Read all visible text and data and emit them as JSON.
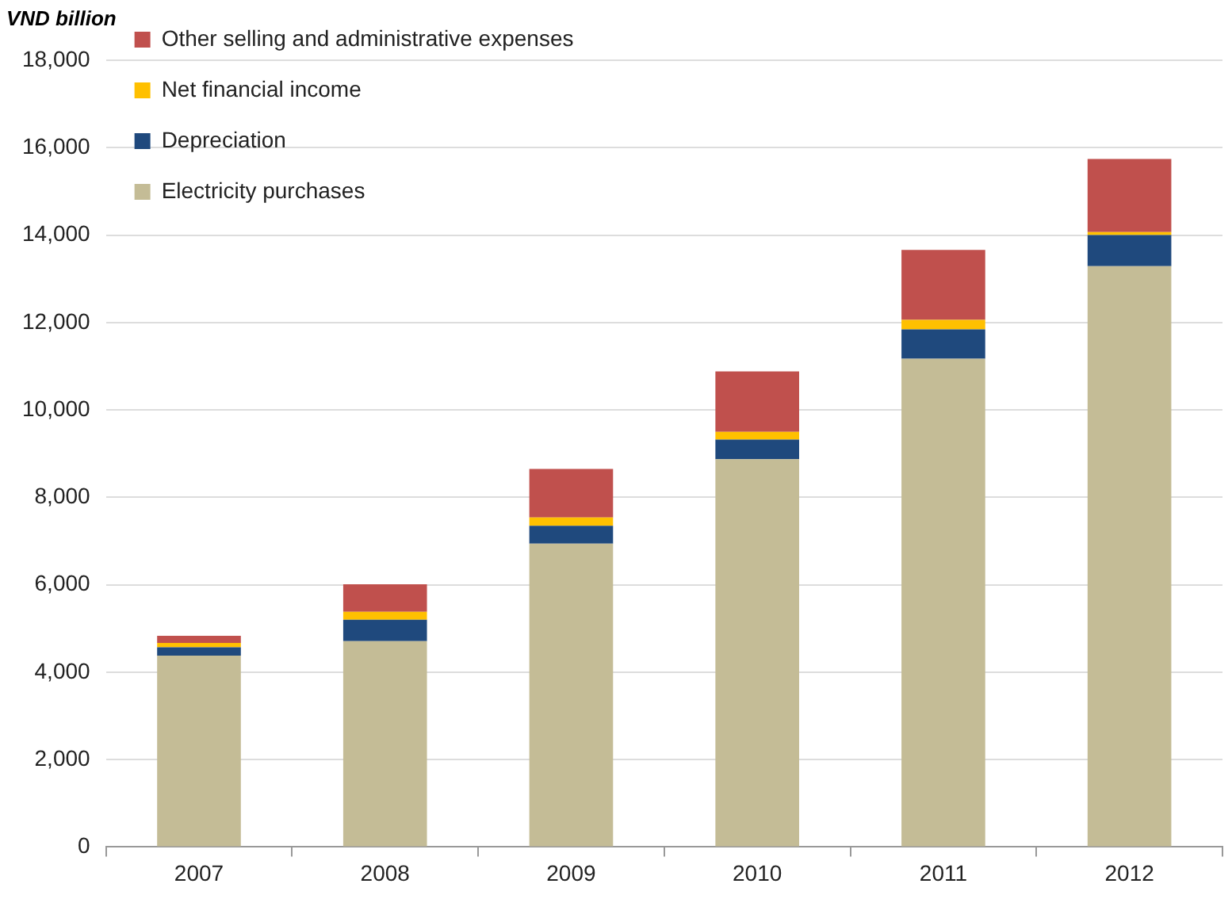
{
  "chart_data": {
    "type": "bar",
    "ylabel": "VND billion",
    "stacked": true,
    "categories": [
      "2007",
      "2008",
      "2009",
      "2010",
      "2011",
      "2012"
    ],
    "series": [
      {
        "name": "Electricity purchases",
        "color": "#c4bc96",
        "values": [
          4380,
          4710,
          6940,
          8870,
          11170,
          13290
        ]
      },
      {
        "name": "Depreciation",
        "color": "#1f497d",
        "values": [
          190,
          490,
          410,
          450,
          670,
          710
        ]
      },
      {
        "name": "Net financial income",
        "color": "#ffc000",
        "values": [
          100,
          180,
          190,
          180,
          220,
          70
        ]
      },
      {
        "name": "Other selling and administrative expenses",
        "color": "#c0504d",
        "values": [
          160,
          630,
          1110,
          1380,
          1600,
          1670
        ]
      }
    ],
    "ylim": [
      0,
      18000
    ],
    "yticks": [
      {
        "value": 0,
        "label": "0"
      },
      {
        "value": 2000,
        "label": "2,000"
      },
      {
        "value": 4000,
        "label": "4,000"
      },
      {
        "value": 6000,
        "label": "6,000"
      },
      {
        "value": 8000,
        "label": "8,000"
      },
      {
        "value": 10000,
        "label": "10,000"
      },
      {
        "value": 12000,
        "label": "12,000"
      },
      {
        "value": 14000,
        "label": "14,000"
      },
      {
        "value": 16000,
        "label": "16,000"
      },
      {
        "value": 18000,
        "label": "18,000"
      }
    ],
    "grid": "y",
    "legend": "top left"
  }
}
